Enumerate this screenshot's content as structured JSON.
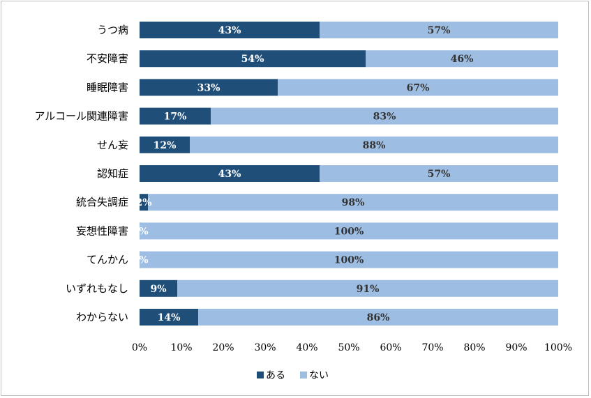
{
  "chart_data": {
    "type": "bar",
    "orientation": "horizontal",
    "stacked": true,
    "categories": [
      "うつ病",
      "不安障害",
      "睡眠障害",
      "アルコール関連障害",
      "せん妄",
      "認知症",
      "統合失調症",
      "妄想性障害",
      "てんかん",
      "いずれもなし",
      "わからない"
    ],
    "series": [
      {
        "name": "ある",
        "values": [
          43,
          54,
          33,
          17,
          12,
          43,
          2,
          0,
          0,
          9,
          14
        ],
        "labels": [
          "43%",
          "54%",
          "33%",
          "17%",
          "12%",
          "43%",
          "2%",
          "0%",
          "0%",
          "9%",
          "14%"
        ],
        "color": "#1f4e79",
        "label_color": "#ffffff"
      },
      {
        "name": "ない",
        "values": [
          57,
          46,
          67,
          83,
          88,
          57,
          98,
          100,
          100,
          91,
          86
        ],
        "labels": [
          "57%",
          "46%",
          "67%",
          "83%",
          "88%",
          "57%",
          "98%",
          "100%",
          "100%",
          "91%",
          "86%"
        ],
        "color": "#9dbde2",
        "label_color": "#333333"
      }
    ],
    "xlim": [
      0,
      100
    ],
    "xticks": [
      "0%",
      "10%",
      "20%",
      "30%",
      "40%",
      "50%",
      "60%",
      "70%",
      "80%",
      "90%",
      "100%"
    ],
    "grid": false,
    "legend": "bottom",
    "title": "",
    "xlabel": "",
    "ylabel": ""
  }
}
